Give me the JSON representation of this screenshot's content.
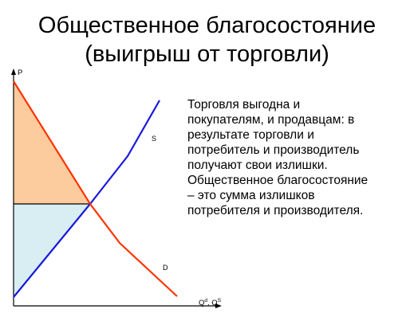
{
  "title": {
    "line1": "Общественное благосостояние",
    "line2": "(выигрыш от торговли)"
  },
  "body_text": {
    "lines": [
      "Торговля выгодна и",
      "покупателям, и продавцам: в",
      "результате торговли и",
      "потребитель и производитель",
      "получают свои излишки.",
      "Общественное благосостояние",
      "– это сумма излишков",
      "потребителя и производителя."
    ]
  },
  "diagram": {
    "y_axis_label": "P",
    "x_axis_label_main": "Q",
    "x_axis_label_sup1": "d",
    "x_axis_label_sep": ", Q",
    "x_axis_label_sup2": "S",
    "supply_label": "S",
    "demand_label": "D"
  },
  "colors": {
    "demand": "#ff3300",
    "supply": "#1a1adb",
    "consumer_surplus": "#fccb9e",
    "producer_surplus": "#d8eef2",
    "equilibrium_line": "#000000",
    "axes": "#000000"
  }
}
